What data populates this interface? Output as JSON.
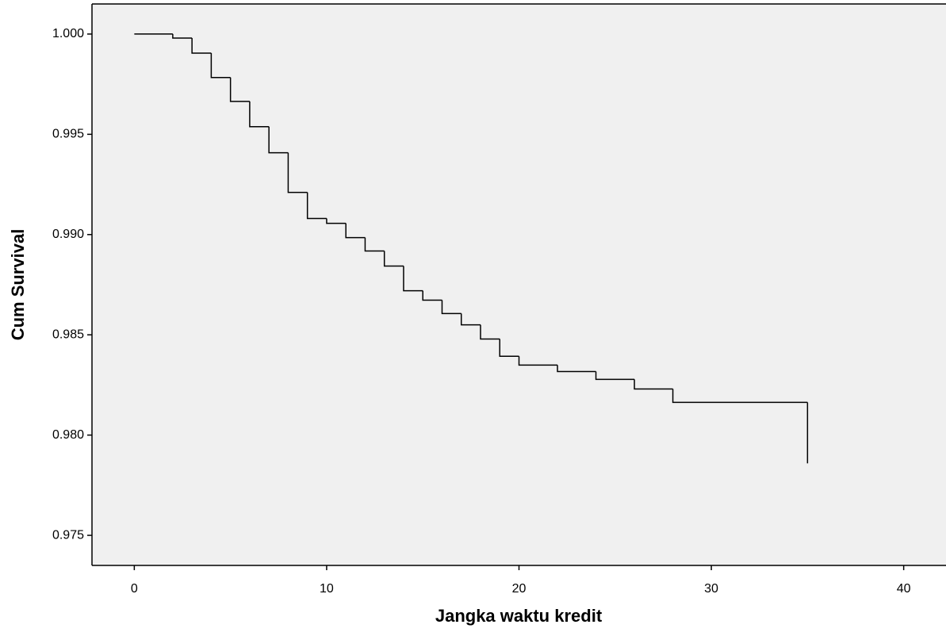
{
  "chart_data": {
    "type": "step",
    "x_label": "Jangka waktu kredit",
    "y_label": "Cum Survival",
    "x": [
      0,
      2,
      3,
      4,
      5,
      6,
      7,
      8,
      9,
      10,
      11,
      12,
      13,
      14,
      15,
      16,
      17,
      18,
      19,
      20,
      22,
      24,
      26,
      28,
      35
    ],
    "values": [
      1.0,
      0.9998,
      0.99905,
      0.99783,
      0.99664,
      0.99538,
      0.99408,
      0.9921,
      0.9908,
      0.99056,
      0.98985,
      0.98918,
      0.98843,
      0.9872,
      0.98673,
      0.98606,
      0.9855,
      0.98479,
      0.98393,
      0.98349,
      0.98317,
      0.98278,
      0.9823,
      0.98163,
      0.97859
    ],
    "color": "#000000",
    "background": "#f0f0f0",
    "xlim": [
      -2.2,
      42.2
    ],
    "ylim": [
      0.9735,
      1.0015
    ],
    "xticks": [
      0,
      10,
      20,
      30,
      40
    ],
    "yticks": [
      {
        "value": 0.975,
        "label": "0.975"
      },
      {
        "value": 0.98,
        "label": "0.980"
      },
      {
        "value": 0.985,
        "label": "0.985"
      },
      {
        "value": 0.99,
        "label": "0.990"
      },
      {
        "value": 0.995,
        "label": "0.995"
      },
      {
        "value": 1.0,
        "label": "1.000"
      }
    ]
  }
}
